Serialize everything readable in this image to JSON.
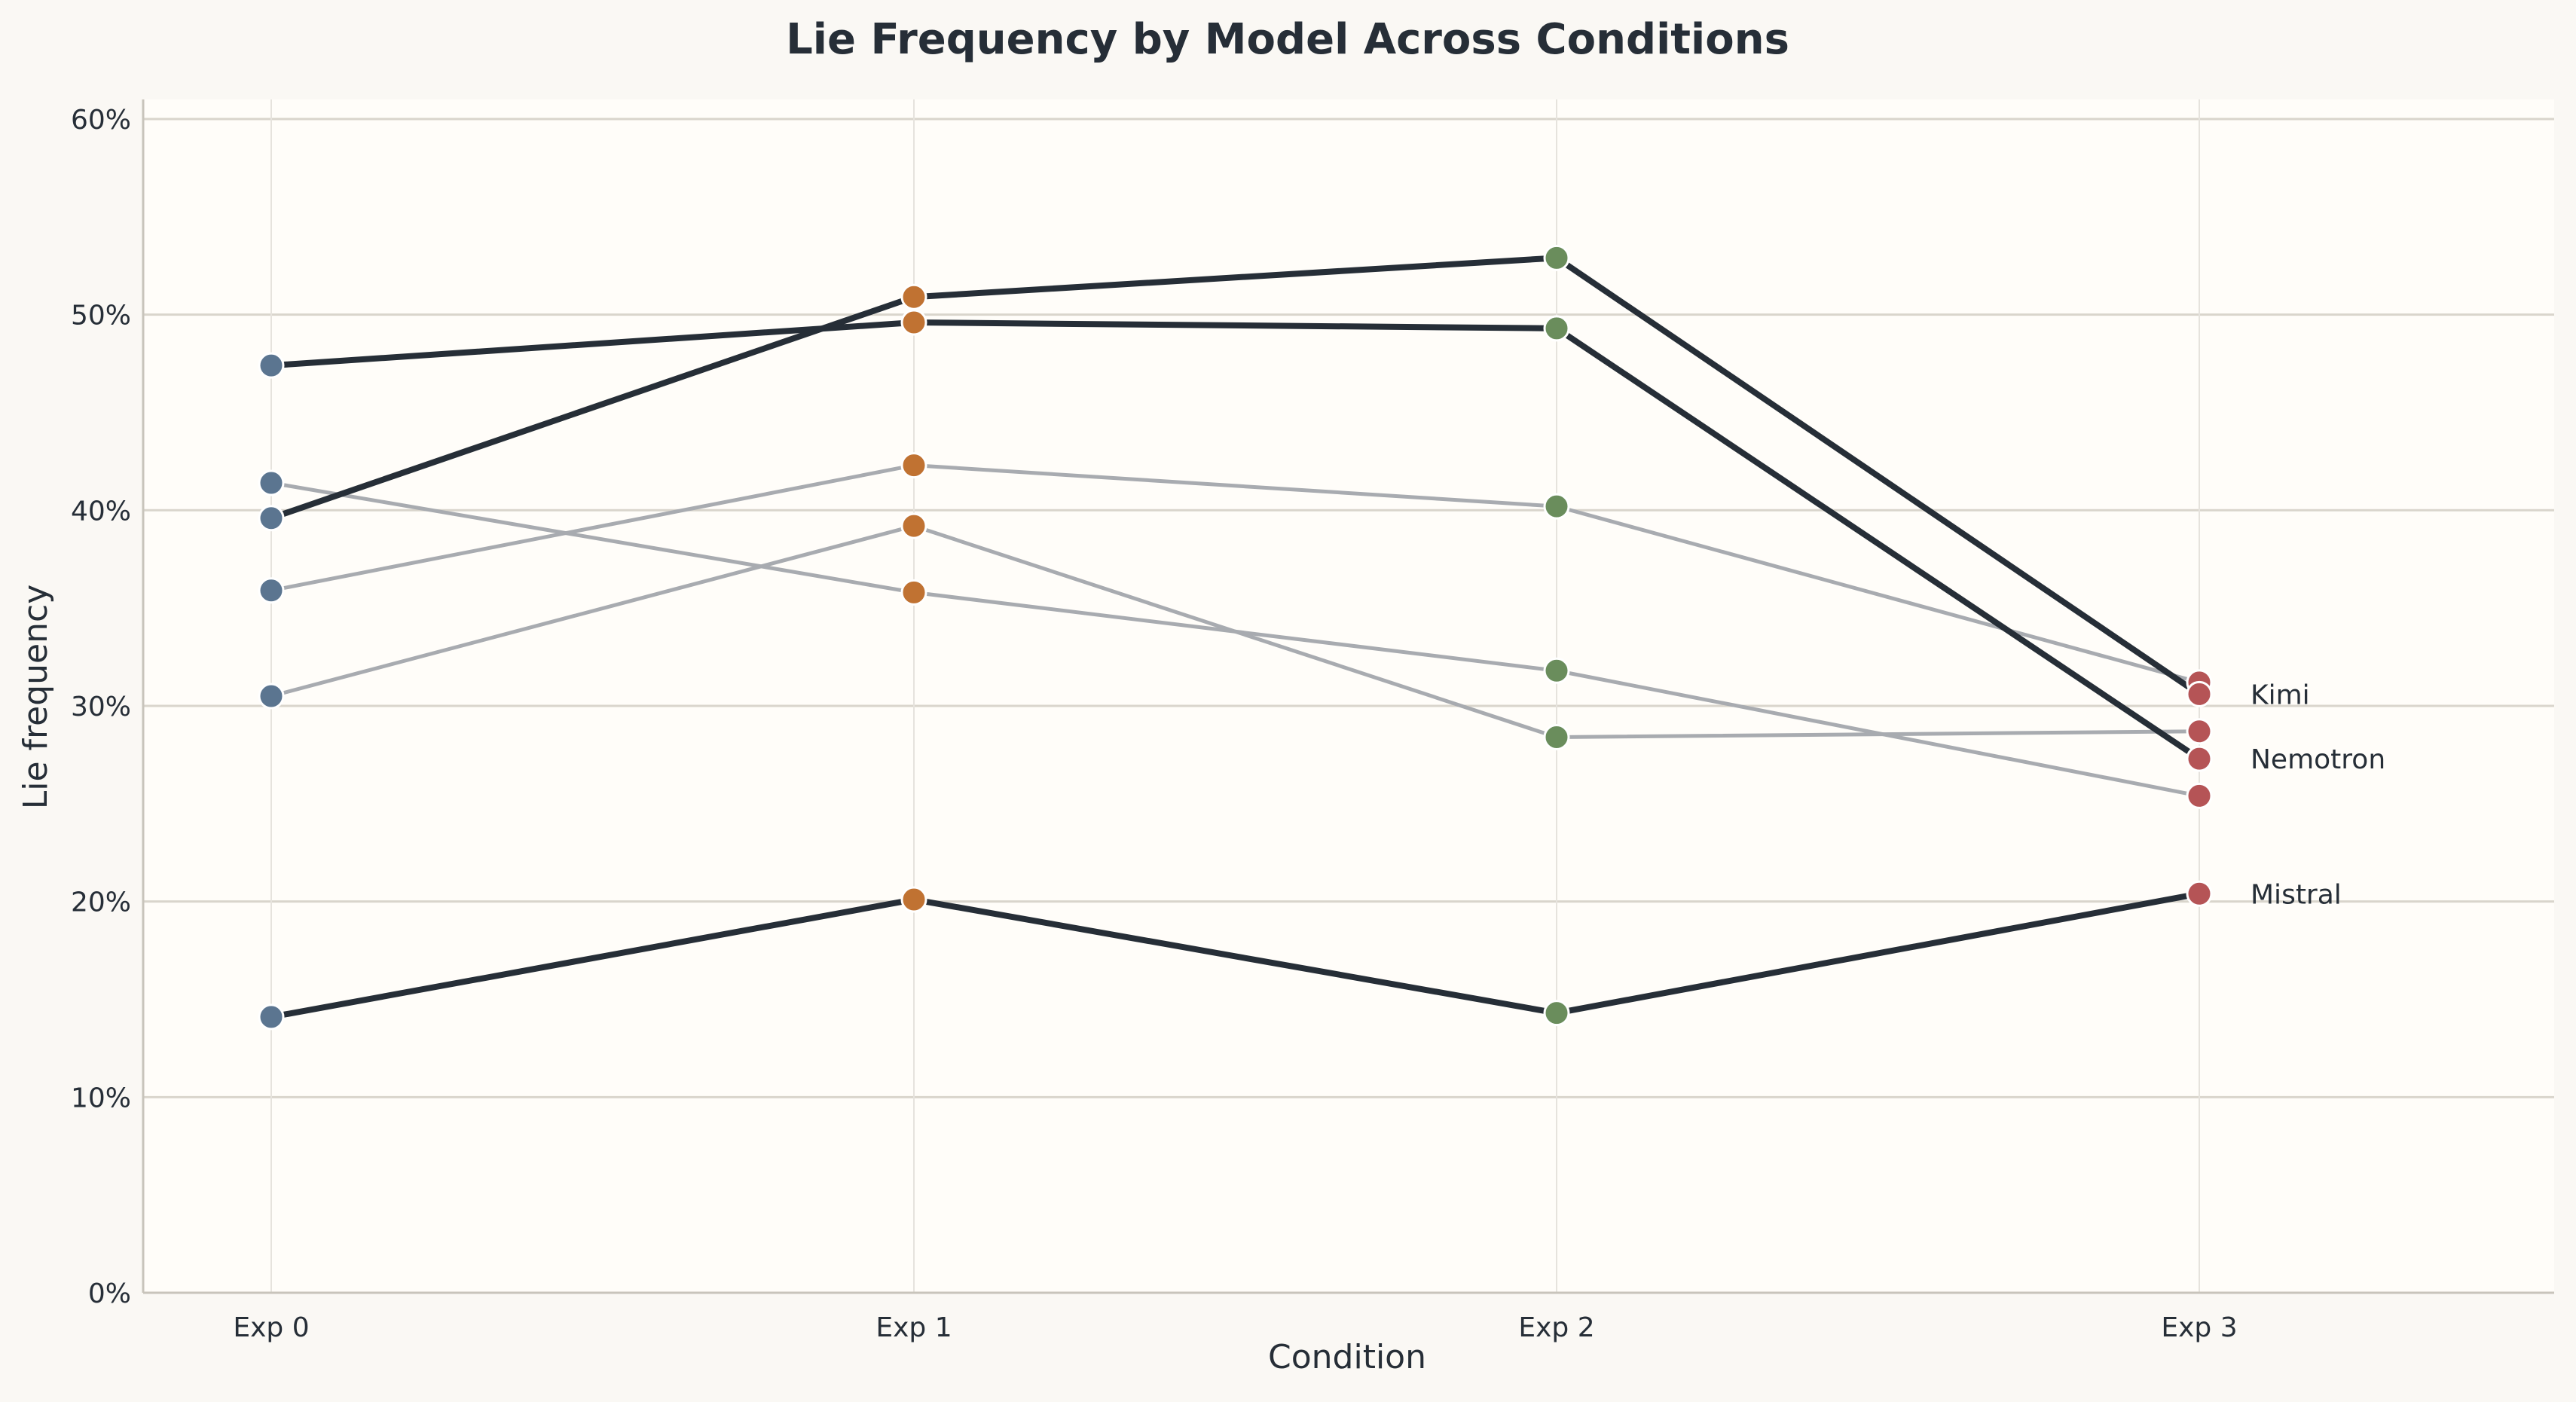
{
  "chart_data": {
    "type": "line",
    "title": "Lie Frequency by Model Across Conditions",
    "xlabel": "Condition",
    "ylabel": "Lie frequency",
    "categories": [
      "Exp 0",
      "Exp 1",
      "Exp 2",
      "Exp 3"
    ],
    "ylim": [
      0,
      0.61
    ],
    "yticks": [
      0,
      0.1,
      0.2,
      0.3,
      0.4,
      0.5,
      0.6
    ],
    "ytick_labels": [
      "0%",
      "10%",
      "20%",
      "30%",
      "40%",
      "50%",
      "60%"
    ],
    "grid": "horizontal",
    "legend": "none; direct labels at right for highlighted series",
    "series": [
      {
        "name": "Kimi",
        "highlight": true,
        "values": [
          0.396,
          0.509,
          0.529,
          0.306
        ]
      },
      {
        "name": "Nemotron",
        "highlight": true,
        "values": [
          0.474,
          0.496,
          0.493,
          0.273
        ]
      },
      {
        "name": "Mistral",
        "highlight": true,
        "values": [
          0.141,
          0.201,
          0.143,
          0.204
        ]
      },
      {
        "name": "",
        "highlight": false,
        "values": [
          0.359,
          0.423,
          0.402,
          0.312
        ]
      },
      {
        "name": "",
        "highlight": false,
        "values": [
          0.414,
          0.358,
          0.318,
          0.254
        ]
      },
      {
        "name": "",
        "highlight": false,
        "values": [
          0.305,
          0.392,
          0.284,
          0.287
        ]
      }
    ],
    "condition_colors": [
      "#5b7590",
      "#c07232",
      "#6a8d5c",
      "#b55456"
    ]
  },
  "colors": {
    "figure_background": "#faf8f4",
    "plot_background": "#fffdf9",
    "highlight_line": "#262e37",
    "muted_line": "#a8abb0",
    "grid": "#d9d5cc",
    "axis": "#c8c4bb",
    "text": "#262e37"
  }
}
